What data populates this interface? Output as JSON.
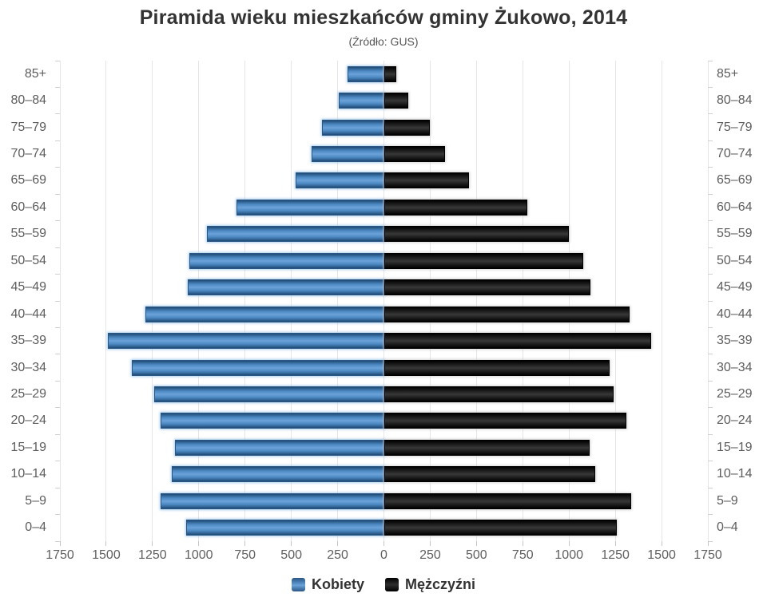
{
  "title": "Piramida wieku mieszkańców gminy Żukowo, 2014",
  "subtitle": "(Źródło: GUS)",
  "legend": {
    "items": [
      {
        "label": "Kobiety",
        "color": "#4d89c3"
      },
      {
        "label": "Mężczyźni",
        "color": "#1c1c1c"
      }
    ]
  },
  "chart_data": {
    "type": "bar",
    "variant": "population-pyramid",
    "title": "Piramida wieku mieszkańców gminy Żukowo, 2014",
    "subtitle": "(Źródło: GUS)",
    "categories": [
      "85+",
      "80–84",
      "75–79",
      "70–74",
      "65–69",
      "60–64",
      "55–59",
      "50–54",
      "45–49",
      "40–44",
      "35–39",
      "30–34",
      "25–29",
      "20–24",
      "15–19",
      "10–14",
      "5–9",
      "0–4"
    ],
    "series": [
      {
        "name": "Kobiety",
        "side": "left",
        "color": "#4d89c3",
        "values": [
          195,
          245,
          335,
          390,
          475,
          795,
          955,
          1050,
          1060,
          1290,
          1490,
          1360,
          1240,
          1205,
          1130,
          1145,
          1205,
          1070
        ]
      },
      {
        "name": "Mężczyźni",
        "side": "right",
        "color": "#1c1c1c",
        "values": [
          65,
          130,
          250,
          330,
          460,
          775,
          1000,
          1075,
          1115,
          1325,
          1445,
          1220,
          1240,
          1310,
          1110,
          1140,
          1335,
          1260
        ]
      }
    ],
    "x_tick_labels": [
      "1750",
      "1500",
      "1250",
      "1000",
      "750",
      "500",
      "250",
      "0",
      "250",
      "500",
      "750",
      "1000",
      "1250",
      "1500",
      "1750"
    ],
    "x_max": 1750,
    "x_tick_step": 250,
    "grid": true,
    "legend_position": "bottom"
  }
}
